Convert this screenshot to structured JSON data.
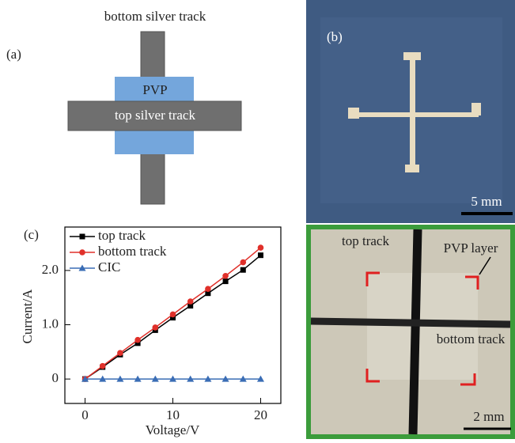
{
  "panel_a": {
    "label": "(a)",
    "bottom_track": "bottom silver track",
    "layer": "PVP",
    "top_track": "top silver track"
  },
  "panel_b": {
    "label": "(b)",
    "scale": "5 mm"
  },
  "panel_d": {
    "top_track": "top track",
    "layer": "PVP layer",
    "bottom_track": "bottom track",
    "scale": "2 mm"
  },
  "chart_data": {
    "type": "line",
    "label": "(c)",
    "x_label": "Voltage/V",
    "y_label": "Current/A",
    "x": [
      0,
      2,
      4,
      6,
      8,
      10,
      12,
      14,
      16,
      18,
      20
    ],
    "series": [
      {
        "name": "top track",
        "color": "#000000",
        "marker": "square",
        "values": [
          0,
          0.22,
          0.45,
          0.66,
          0.9,
          1.13,
          1.35,
          1.58,
          1.8,
          2.01,
          2.28
        ]
      },
      {
        "name": "bottom track",
        "color": "#e0302a",
        "marker": "circle",
        "values": [
          0,
          0.24,
          0.48,
          0.72,
          0.95,
          1.19,
          1.43,
          1.66,
          1.9,
          2.15,
          2.42
        ]
      },
      {
        "name": "CIC",
        "color": "#3a6db5",
        "marker": "triangle",
        "values": [
          0,
          0,
          0,
          0,
          0,
          0,
          0,
          0,
          0,
          0,
          0
        ]
      }
    ],
    "xlim": [
      -2.3,
      22.3
    ],
    "ylim": [
      -0.45,
      2.8
    ],
    "xticks": [
      0,
      10,
      20
    ],
    "yticks": [
      0,
      {
        "value": 1,
        "label": "1.0"
      },
      {
        "value": 2,
        "label": "2.0"
      }
    ],
    "legend": "upper left"
  }
}
